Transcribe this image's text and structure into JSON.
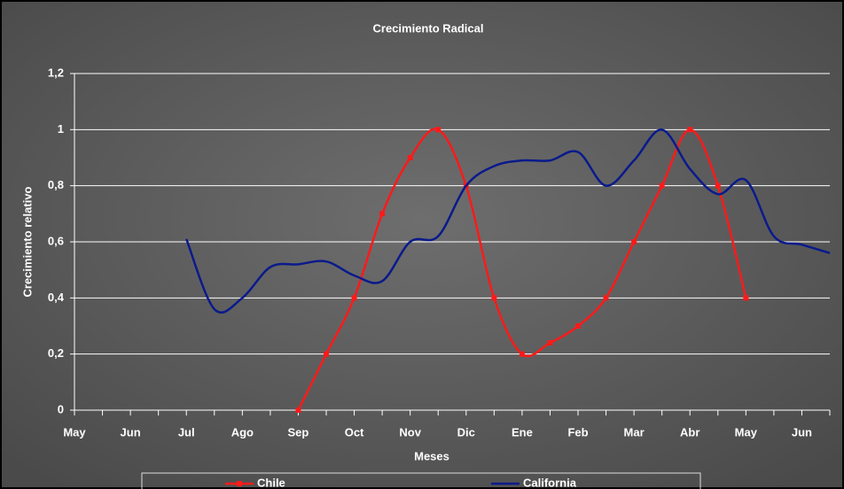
{
  "chart_data": {
    "type": "line",
    "title": "Crecimiento Radical",
    "x_label": "Meses",
    "y_label": "Crecimiento relativo",
    "xlim": [
      0,
      13.5
    ],
    "xticks": [
      {
        "value": 0,
        "label": "May"
      },
      {
        "value": 1,
        "label": "Jun"
      },
      {
        "value": 2,
        "label": "Jul"
      },
      {
        "value": 3,
        "label": "Ago"
      },
      {
        "value": 4,
        "label": "Sep"
      },
      {
        "value": 5,
        "label": "Oct"
      },
      {
        "value": 6,
        "label": "Nov"
      },
      {
        "value": 7,
        "label": "Dic"
      },
      {
        "value": 8,
        "label": "Ene"
      },
      {
        "value": 9,
        "label": "Feb"
      },
      {
        "value": 10,
        "label": "Mar"
      },
      {
        "value": 11,
        "label": "Abr"
      },
      {
        "value": 12,
        "label": "May"
      },
      {
        "value": 13,
        "label": "Jun"
      }
    ],
    "xminorticks": [
      0.5,
      1.5,
      2.5,
      3.5,
      4.5,
      5.5,
      6.5,
      7.5,
      8.5,
      9.5,
      10.5,
      11.5,
      12.5,
      13.5
    ],
    "ylim": [
      0,
      1.2
    ],
    "yticks": [
      0,
      {
        "value": 0.2,
        "label": "0,2"
      },
      {
        "value": 0.4,
        "label": "0,4"
      },
      {
        "value": 0.6,
        "label": "0,6"
      },
      {
        "value": 0.8,
        "label": "0,8"
      },
      1,
      {
        "value": 1.2,
        "label": "1,2"
      }
    ],
    "grid": true,
    "legend": "bottom",
    "series": [
      {
        "name": "Chile",
        "color": "#ff1a1a",
        "marker": "square",
        "smooth": true,
        "x": [
          4,
          4.5,
          5,
          5.5,
          6,
          6.5,
          7,
          7.5,
          8,
          8.5,
          9,
          9.5,
          10,
          10.5,
          11,
          11.5,
          12
        ],
        "values": [
          0,
          0.2,
          0.4,
          0.7,
          0.9,
          1.0,
          0.8,
          0.4,
          0.2,
          0.24,
          0.3,
          0.4,
          0.6,
          0.8,
          1.0,
          0.8,
          0.4
        ]
      },
      {
        "name": "California",
        "color": "#0a1a8c",
        "marker": "none",
        "smooth": true,
        "x": [
          2,
          2.5,
          3,
          3.5,
          4,
          4.5,
          5,
          5.5,
          6,
          6.5,
          7,
          7.5,
          8,
          8.5,
          9,
          9.5,
          10,
          10.5,
          11,
          11.5,
          12,
          12.5,
          13,
          13.5
        ],
        "values": [
          0.61,
          0.36,
          0.4,
          0.51,
          0.52,
          0.53,
          0.48,
          0.46,
          0.6,
          0.62,
          0.8,
          0.87,
          0.89,
          0.89,
          0.92,
          0.8,
          0.89,
          1.0,
          0.86,
          0.77,
          0.82,
          0.62,
          0.59,
          0.56
        ]
      }
    ]
  }
}
